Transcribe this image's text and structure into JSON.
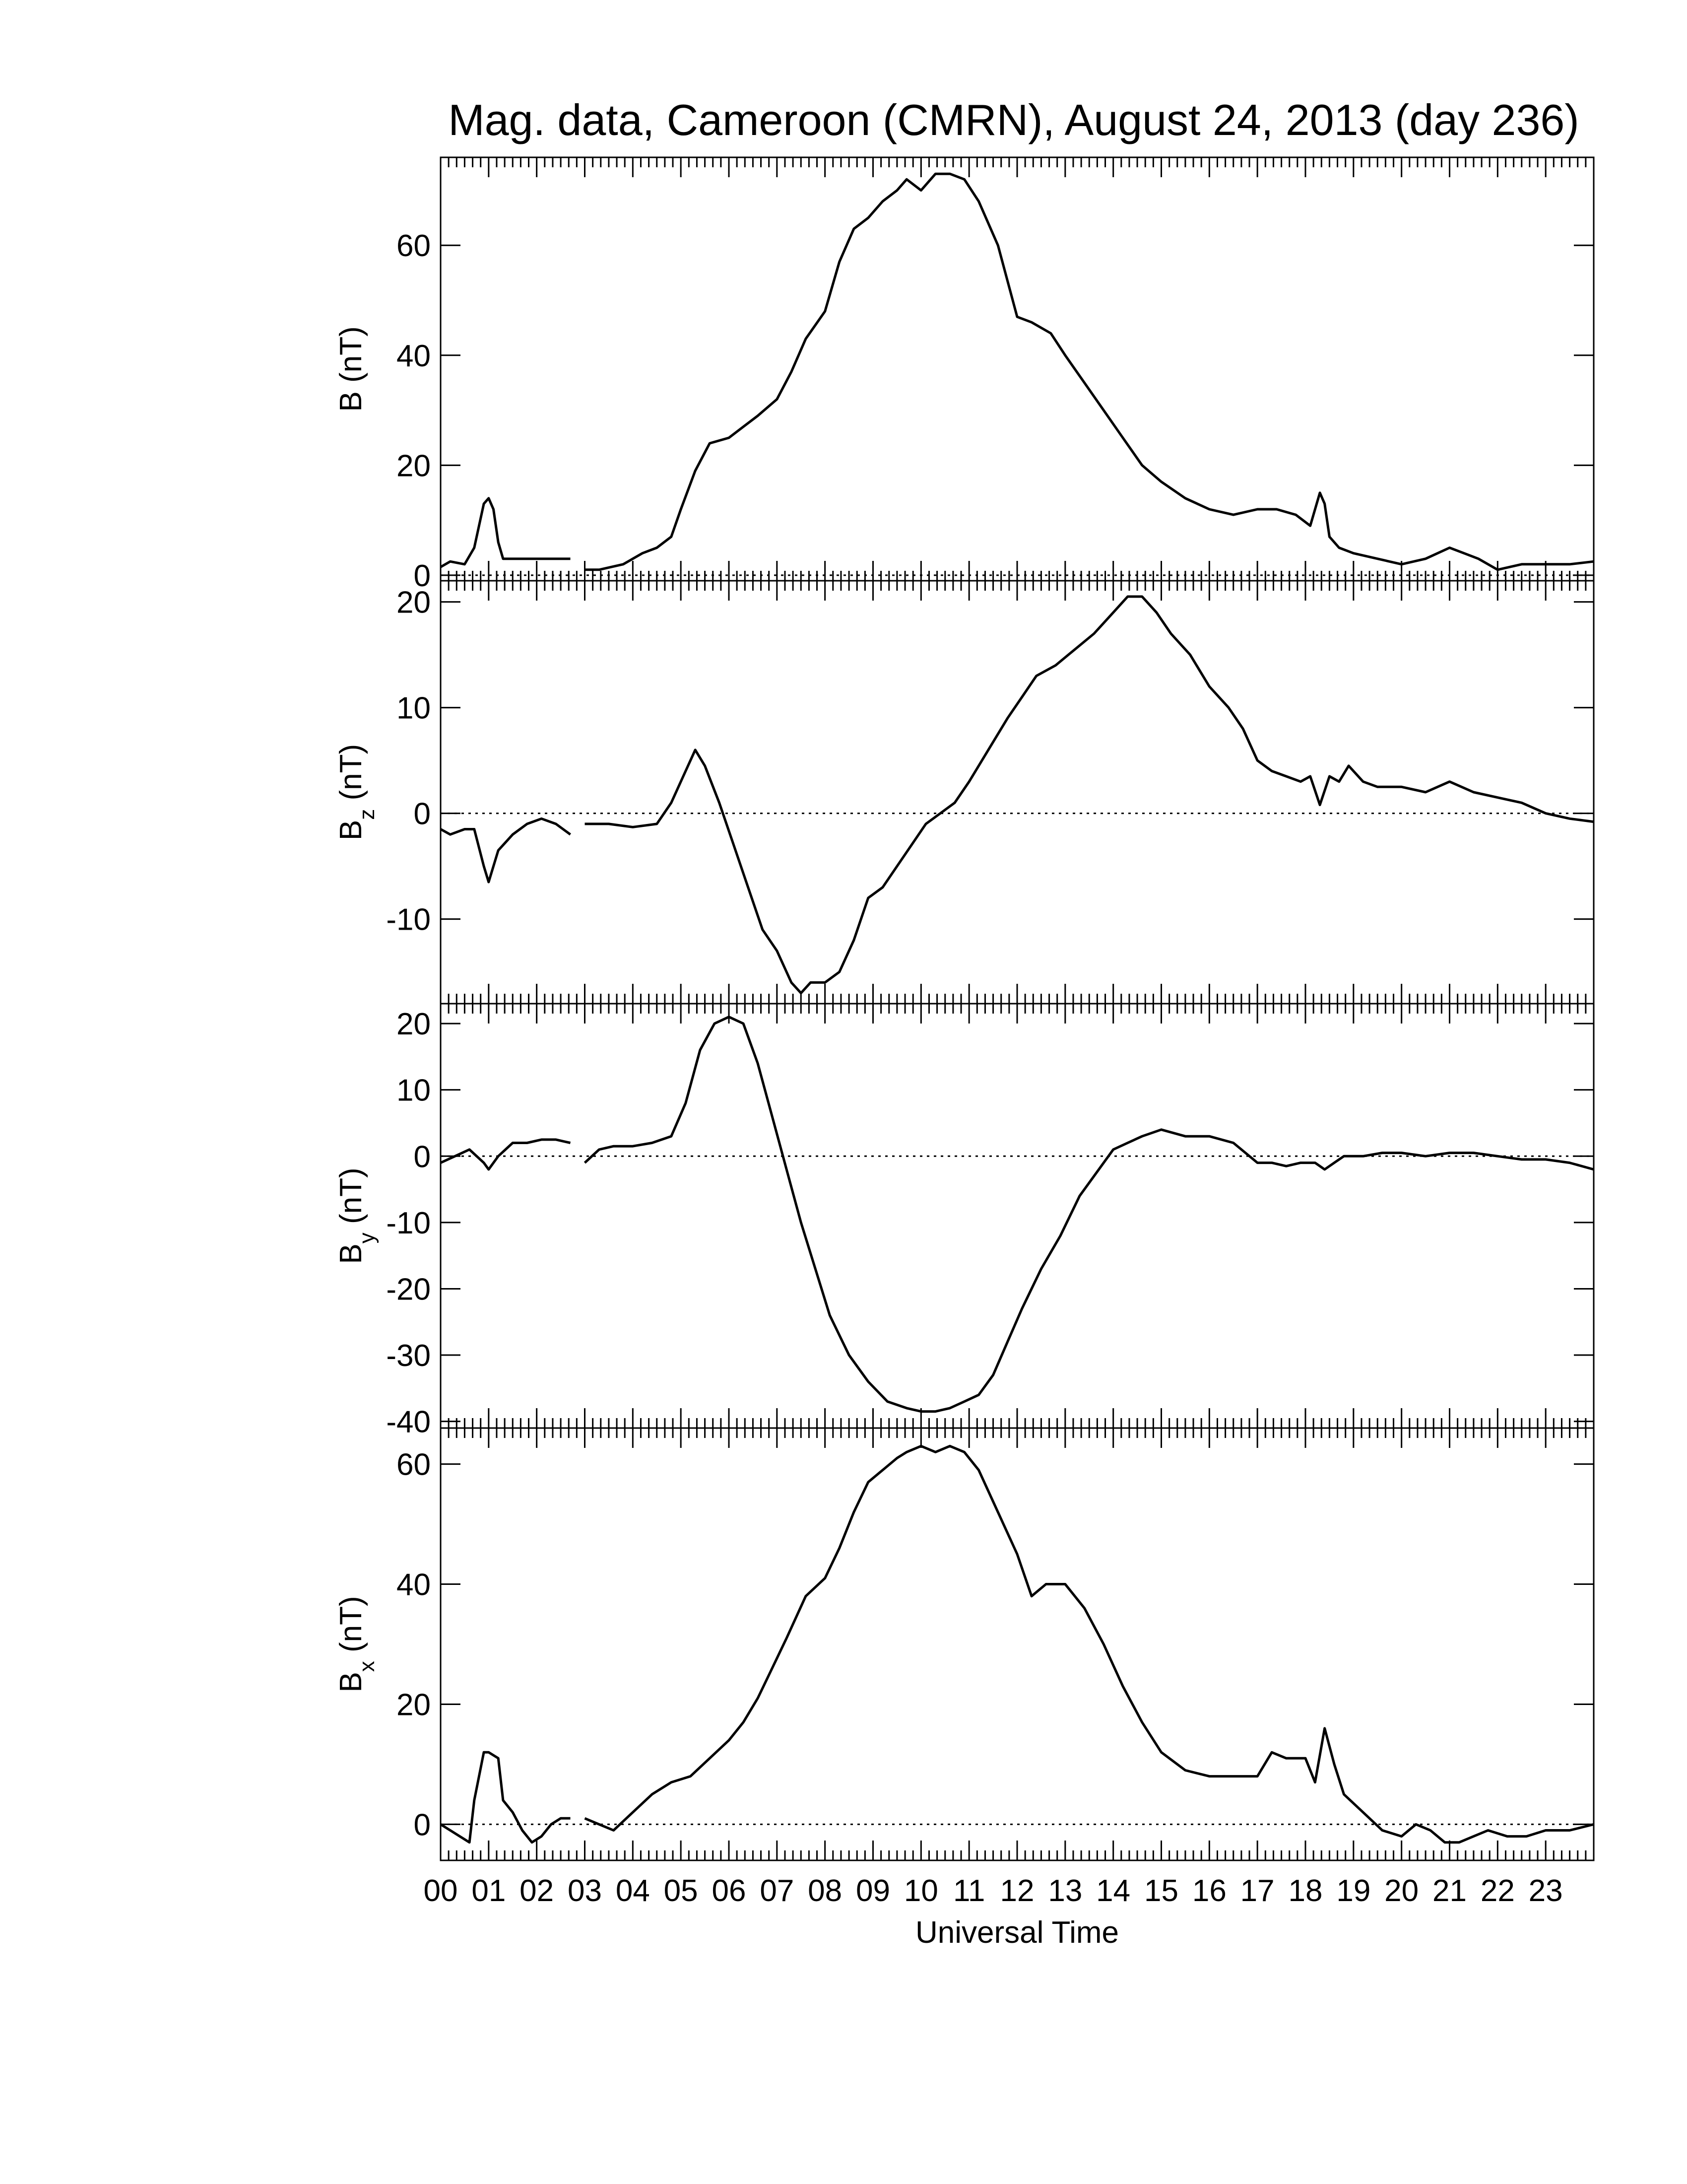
{
  "title": "Mag. data, Cameroon (CMRN), August 24, 2013 (day 236)",
  "xlabel": "Universal Time",
  "x_ticks": [
    "00",
    "01",
    "02",
    "03",
    "04",
    "05",
    "06",
    "07",
    "08",
    "09",
    "10",
    "11",
    "12",
    "13",
    "14",
    "15",
    "16",
    "17",
    "18",
    "19",
    "20",
    "21",
    "22",
    "23"
  ],
  "colors": {
    "line": "#000000",
    "background": "#ffffff",
    "zero_line": "#000000"
  },
  "chart_data": [
    {
      "type": "line",
      "panel": "B",
      "ylabel_main": "B",
      "ylabel_sub": "",
      "ylabel_unit": "(nT)",
      "ylim": [
        -1,
        76
      ],
      "yticks": [
        0,
        20,
        40,
        60
      ],
      "x_unit": "hours UT",
      "xlim": [
        0,
        24
      ],
      "zero_line": true,
      "segments": [
        {
          "x": [
            0,
            0.2,
            0.5,
            0.7,
            0.9,
            1.0,
            1.1,
            1.2,
            1.3,
            1.5,
            2.0,
            2.5,
            2.7
          ],
          "y": [
            1.5,
            2.5,
            2,
            5,
            13,
            14,
            12,
            6,
            3,
            3,
            3,
            3,
            3
          ]
        },
        {
          "x": [
            3.0,
            3.3,
            3.8,
            4.2,
            4.5,
            4.8,
            5.0,
            5.3,
            5.6,
            6.0,
            6.3,
            6.6,
            7.0,
            7.3,
            7.6,
            8.0,
            8.3,
            8.6,
            8.9,
            9.2,
            9.5,
            9.7,
            10.0,
            10.3,
            10.6,
            10.9,
            11.2,
            11.6,
            12.0,
            12.3,
            12.7,
            13.0,
            13.4,
            13.8,
            14.2,
            14.6,
            15.0,
            15.5,
            16.0,
            16.5,
            17.0,
            17.4,
            17.8,
            18.1,
            18.3,
            18.4,
            18.5,
            18.7,
            19.0,
            19.5,
            20.0,
            20.5,
            21.0,
            21.3,
            21.6,
            22.0,
            22.5,
            23.0,
            23.5,
            24.0
          ],
          "y": [
            1,
            1,
            2,
            4,
            5,
            7,
            12,
            19,
            24,
            25,
            27,
            29,
            32,
            37,
            43,
            48,
            57,
            63,
            65,
            68,
            70,
            72,
            70,
            73,
            73,
            72,
            68,
            60,
            47,
            46,
            44,
            40,
            35,
            30,
            25,
            20,
            17,
            14,
            12,
            11,
            12,
            12,
            11,
            9,
            15,
            13,
            7,
            5,
            4,
            3,
            2,
            3,
            5,
            4,
            3,
            1,
            2,
            2,
            2,
            2.5
          ]
        }
      ]
    },
    {
      "type": "line",
      "panel": "Bz",
      "ylabel_main": "B",
      "ylabel_sub": "z",
      "ylabel_unit": "(nT)",
      "ylim": [
        -18,
        22
      ],
      "yticks": [
        -10,
        0,
        10,
        20
      ],
      "yticklabels": [
        "-10",
        "0",
        "10",
        "20"
      ],
      "x_unit": "hours UT",
      "xlim": [
        0,
        24
      ],
      "zero_line": true,
      "segments": [
        {
          "x": [
            0,
            0.2,
            0.5,
            0.7,
            0.9,
            1.0,
            1.2,
            1.5,
            1.8,
            2.1,
            2.4,
            2.7
          ],
          "y": [
            -1.5,
            -2,
            -1.5,
            -1.5,
            -5,
            -6.5,
            -3.5,
            -2,
            -1,
            -0.5,
            -1,
            -2
          ]
        },
        {
          "x": [
            3.0,
            3.5,
            4.0,
            4.5,
            4.8,
            5.1,
            5.3,
            5.5,
            5.8,
            6.1,
            6.4,
            6.7,
            7.0,
            7.3,
            7.5,
            7.7,
            8.0,
            8.3,
            8.6,
            8.9,
            9.2,
            9.5,
            9.8,
            10.1,
            10.4,
            10.7,
            11.0,
            11.4,
            11.8,
            12.1,
            12.4,
            12.8,
            13.2,
            13.6,
            14.0,
            14.3,
            14.6,
            14.9,
            15.2,
            15.6,
            16.0,
            16.4,
            16.7,
            17.0,
            17.3,
            17.6,
            17.9,
            18.1,
            18.3,
            18.5,
            18.7,
            18.9,
            19.2,
            19.5,
            20.0,
            20.5,
            21.0,
            21.5,
            22.0,
            22.5,
            23.0,
            23.5,
            24.0
          ],
          "y": [
            -1,
            -1,
            -1.3,
            -1,
            1,
            4,
            6,
            4.5,
            1,
            -3,
            -7,
            -11,
            -13,
            -16,
            -17,
            -16,
            -16,
            -15,
            -12,
            -8,
            -7,
            -5,
            -3,
            -1,
            0,
            1,
            3,
            6,
            9,
            11,
            13,
            14,
            15.5,
            17,
            19,
            20.5,
            20.5,
            19,
            17,
            15,
            12,
            10,
            8,
            5,
            4,
            3.5,
            3,
            3.5,
            0.8,
            3.5,
            3,
            4.5,
            3,
            2.5,
            2.5,
            2,
            3,
            2,
            1.5,
            1,
            0,
            -0.5,
            -0.8
          ]
        }
      ]
    },
    {
      "type": "line",
      "panel": "By",
      "ylabel_main": "B",
      "ylabel_sub": "y",
      "ylabel_unit": "(nT)",
      "ylim": [
        -41,
        23
      ],
      "yticks": [
        -40,
        -30,
        -20,
        -10,
        0,
        10,
        20
      ],
      "yticklabels": [
        "-40",
        "-30",
        "-20",
        "-10",
        "0",
        "10",
        "20"
      ],
      "x_unit": "hours UT",
      "xlim": [
        0,
        24
      ],
      "zero_line": true,
      "segments": [
        {
          "x": [
            0,
            0.3,
            0.6,
            0.9,
            1.0,
            1.2,
            1.5,
            1.8,
            2.1,
            2.4,
            2.7
          ],
          "y": [
            -1,
            0,
            1,
            -1,
            -2,
            0,
            2,
            2,
            2.5,
            2.5,
            2
          ]
        },
        {
          "x": [
            3.0,
            3.3,
            3.6,
            4.0,
            4.4,
            4.8,
            5.1,
            5.4,
            5.7,
            6.0,
            6.3,
            6.6,
            6.9,
            7.2,
            7.5,
            7.8,
            8.1,
            8.5,
            8.9,
            9.3,
            9.7,
            10.0,
            10.3,
            10.6,
            10.9,
            11.2,
            11.5,
            11.8,
            12.1,
            12.5,
            12.9,
            13.3,
            13.7,
            14.0,
            14.3,
            14.6,
            15.0,
            15.5,
            16.0,
            16.5,
            17.0,
            17.3,
            17.6,
            17.9,
            18.2,
            18.4,
            18.6,
            18.8,
            19.2,
            19.6,
            20.0,
            20.5,
            21.0,
            21.5,
            22.0,
            22.5,
            23.0,
            23.5,
            24.0
          ],
          "y": [
            -1,
            1,
            1.5,
            1.5,
            2,
            3,
            8,
            16,
            20,
            21,
            20,
            14,
            6,
            -2,
            -10,
            -17,
            -24,
            -30,
            -34,
            -37,
            -38,
            -38.5,
            -38.5,
            -38,
            -37,
            -36,
            -33,
            -28,
            -23,
            -17,
            -12,
            -6,
            -2,
            1,
            2,
            3,
            4,
            3,
            3,
            2,
            -1,
            -1,
            -1.5,
            -1,
            -1,
            -2,
            -1,
            0,
            0,
            0.5,
            0.5,
            0,
            0.5,
            0.5,
            0,
            -0.5,
            -0.5,
            -1,
            -2
          ]
        }
      ]
    },
    {
      "type": "line",
      "panel": "Bx",
      "ylabel_main": "B",
      "ylabel_sub": "x",
      "ylabel_unit": "(nT)",
      "ylim": [
        -6,
        66
      ],
      "yticks": [
        0,
        20,
        40,
        60
      ],
      "x_unit": "hours UT",
      "xlim": [
        0,
        24
      ],
      "zero_line": true,
      "segments": [
        {
          "x": [
            0,
            0.2,
            0.4,
            0.6,
            0.7,
            0.9,
            1.0,
            1.2,
            1.3,
            1.5,
            1.7,
            1.9,
            2.1,
            2.3,
            2.5,
            2.7
          ],
          "y": [
            0,
            -1,
            -2,
            -3,
            4,
            12,
            12,
            11,
            4,
            2,
            -1,
            -3,
            -2,
            0,
            1,
            1
          ]
        },
        {
          "x": [
            3.0,
            3.3,
            3.6,
            4.0,
            4.4,
            4.8,
            5.2,
            5.6,
            6.0,
            6.3,
            6.6,
            6.9,
            7.2,
            7.6,
            8.0,
            8.3,
            8.6,
            8.9,
            9.2,
            9.5,
            9.7,
            10.0,
            10.3,
            10.6,
            10.9,
            11.2,
            11.6,
            12.0,
            12.3,
            12.6,
            13.0,
            13.4,
            13.8,
            14.2,
            14.6,
            15.0,
            15.5,
            16.0,
            16.5,
            17.0,
            17.3,
            17.6,
            18.0,
            18.2,
            18.4,
            18.6,
            18.8,
            19.2,
            19.6,
            20.0,
            20.3,
            20.6,
            20.9,
            21.2,
            21.5,
            21.8,
            22.2,
            22.6,
            23.0,
            23.5,
            24.0
          ],
          "y": [
            1,
            0,
            -1,
            2,
            5,
            7,
            8,
            11,
            14,
            17,
            21,
            26,
            31,
            38,
            41,
            46,
            52,
            57,
            59,
            61,
            62,
            63,
            62,
            63,
            62,
            59,
            52,
            45,
            38,
            40,
            40,
            36,
            30,
            23,
            17,
            12,
            9,
            8,
            8,
            8,
            12,
            11,
            11,
            7,
            16,
            10,
            5,
            2,
            -1,
            -2,
            0,
            -1,
            -3,
            -3,
            -2,
            -1,
            -2,
            -2,
            -1,
            -1,
            0
          ]
        }
      ]
    }
  ]
}
